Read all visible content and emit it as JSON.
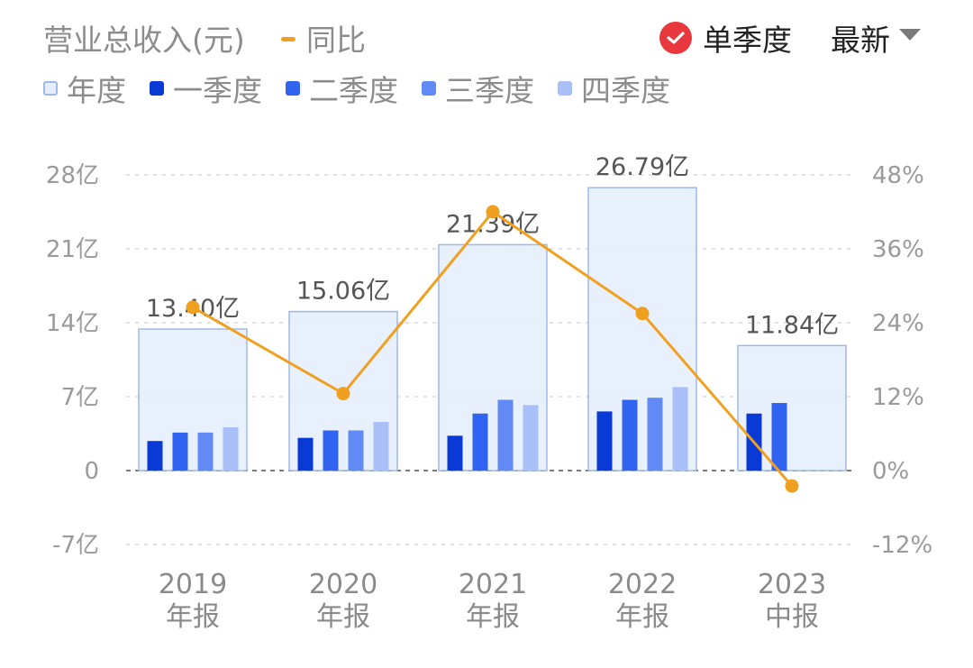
{
  "header": {
    "title": "营业总收入(元)",
    "yoy_label": "同比",
    "single_quarter_label": "单季度",
    "latest_label": "最新"
  },
  "legend": [
    {
      "label": "年度",
      "color": "#e6eefb",
      "border": "#9fb8e6"
    },
    {
      "label": "一季度",
      "color": "#0a3ad6",
      "border": "#0a3ad6"
    },
    {
      "label": "二季度",
      "color": "#2f63f0",
      "border": "#2f63f0"
    },
    {
      "label": "三季度",
      "color": "#628af5",
      "border": "#628af5"
    },
    {
      "label": "四季度",
      "color": "#a8bff8",
      "border": "#a8bff8"
    }
  ],
  "chart_data": {
    "type": "bar",
    "categories": [
      [
        "2019",
        "年报"
      ],
      [
        "2020",
        "年报"
      ],
      [
        "2021",
        "年报"
      ],
      [
        "2022",
        "年报"
      ],
      [
        "2023",
        "中报"
      ]
    ],
    "annual": {
      "name": "年度",
      "values": [
        13.4,
        15.06,
        21.39,
        26.79,
        11.84
      ],
      "labels": [
        "13.40亿",
        "15.06亿",
        "21.39亿",
        "26.79亿",
        "11.84亿"
      ]
    },
    "quarters": [
      {
        "name": "一季度",
        "values": [
          2.8,
          3.1,
          3.3,
          5.6,
          5.4
        ]
      },
      {
        "name": "二季度",
        "values": [
          3.6,
          3.8,
          5.4,
          6.7,
          6.4
        ]
      },
      {
        "name": "三季度",
        "values": [
          3.6,
          3.8,
          6.7,
          6.9,
          null
        ]
      },
      {
        "name": "四季度",
        "values": [
          4.1,
          4.6,
          6.2,
          7.9,
          null
        ]
      }
    ],
    "yoy": {
      "name": "同比",
      "color": "#f0a020",
      "values": [
        26.5,
        12.5,
        42.0,
        25.5,
        -2.5
      ]
    },
    "left_axis": {
      "ticks": [
        28,
        21,
        14,
        7,
        0,
        -7
      ],
      "tick_labels": [
        "28亿",
        "21亿",
        "14亿",
        "7亿",
        "0",
        "-7亿"
      ],
      "ylim": [
        -7,
        28
      ]
    },
    "right_axis": {
      "ticks": [
        48,
        36,
        24,
        12,
        0,
        -12
      ],
      "tick_labels": [
        "48%",
        "36%",
        "24%",
        "12%",
        "0%",
        "-12%"
      ],
      "ylim": [
        -12,
        48
      ]
    },
    "grid": true
  }
}
